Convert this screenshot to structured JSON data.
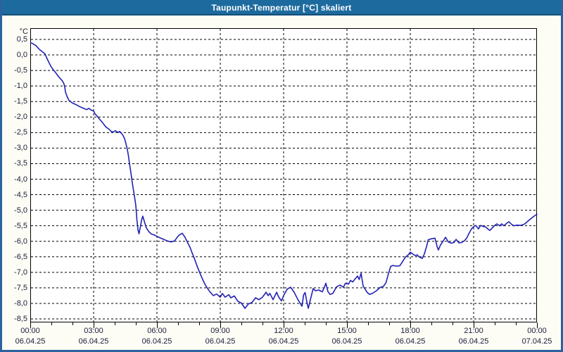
{
  "window": {
    "title": "Taupunkt-Temperatur [°C] skaliert"
  },
  "colors": {
    "titlebar_bg": "#1d6b9e",
    "titlebar_border": "#0f4e78",
    "window_border": "#2a62a0",
    "window_bg": "#fdfdf6",
    "plot_bg": "#ffffff",
    "axis_text": "#1c1c3a",
    "grid": "#000000",
    "line_color": "#2121b4"
  },
  "chart_data": {
    "type": "line",
    "title": "Taupunkt-Temperatur [°C] skaliert",
    "ylabel": "°C",
    "xlabel": "",
    "grid": "dashed",
    "legend": "none",
    "x_range_hours": [
      0,
      24
    ],
    "x_major_step_hours": 3,
    "x_minor_step_hours": 1,
    "ylim": [
      -8.5,
      0.5
    ],
    "y_step": 0.5,
    "y_ticks": [
      {
        "label": "0,5",
        "value": 0.5
      },
      {
        "label": "0,0",
        "value": 0.0
      },
      {
        "label": "-0,5",
        "value": -0.5
      },
      {
        "label": "-1,0",
        "value": -1.0
      },
      {
        "label": "-1,5",
        "value": -1.5
      },
      {
        "label": "-2,0",
        "value": -2.0
      },
      {
        "label": "-2,5",
        "value": -2.5
      },
      {
        "label": "-3,0",
        "value": -3.0
      },
      {
        "label": "-3,5",
        "value": -3.5
      },
      {
        "label": "-4,0",
        "value": -4.0
      },
      {
        "label": "-4,5",
        "value": -4.5
      },
      {
        "label": "-5,0",
        "value": -5.0
      },
      {
        "label": "-5,5",
        "value": -5.5
      },
      {
        "label": "-6,0",
        "value": -6.0
      },
      {
        "label": "-6,5",
        "value": -6.5
      },
      {
        "label": "-7,0",
        "value": -7.0
      },
      {
        "label": "-7,5",
        "value": -7.5
      },
      {
        "label": "-8,0",
        "value": -8.0
      },
      {
        "label": "-8,5",
        "value": -8.5
      }
    ],
    "x_ticks": [
      {
        "hour": 0,
        "time": "00:00",
        "date": "06.04.25"
      },
      {
        "hour": 3,
        "time": "03:00",
        "date": "06.04.25"
      },
      {
        "hour": 6,
        "time": "06:00",
        "date": "06.04.25"
      },
      {
        "hour": 9,
        "time": "09:00",
        "date": "06.04.25"
      },
      {
        "hour": 12,
        "time": "12:00",
        "date": "06.04.25"
      },
      {
        "hour": 15,
        "time": "15:00",
        "date": "06.04.25"
      },
      {
        "hour": 18,
        "time": "18:00",
        "date": "06.04.25"
      },
      {
        "hour": 21,
        "time": "21:00",
        "date": "06.04.25"
      },
      {
        "hour": 24,
        "time": "00:00",
        "date": "07.04.25"
      }
    ],
    "series": [
      {
        "name": "Taupunkt-Temperatur",
        "unit": "°C",
        "points": [
          [
            0,
            0.4
          ],
          [
            0.1,
            0.37
          ],
          [
            0.27,
            0.3
          ],
          [
            0.43,
            0.18
          ],
          [
            0.6,
            0.09
          ],
          [
            0.7,
            0.03
          ],
          [
            0.77,
            -0.08
          ],
          [
            0.87,
            -0.22
          ],
          [
            0.97,
            -0.36
          ],
          [
            1.07,
            -0.46
          ],
          [
            1.17,
            -0.54
          ],
          [
            1.3,
            -0.66
          ],
          [
            1.42,
            -0.76
          ],
          [
            1.5,
            -0.82
          ],
          [
            1.58,
            -0.9
          ],
          [
            1.63,
            -1.02
          ],
          [
            1.67,
            -1.2
          ],
          [
            1.75,
            -1.35
          ],
          [
            1.83,
            -1.46
          ],
          [
            2,
            -1.55
          ],
          [
            2.17,
            -1.6
          ],
          [
            2.33,
            -1.66
          ],
          [
            2.5,
            -1.71
          ],
          [
            2.67,
            -1.76
          ],
          [
            2.77,
            -1.72
          ],
          [
            2.9,
            -1.78
          ],
          [
            3,
            -1.8
          ],
          [
            3.07,
            -1.9
          ],
          [
            3.17,
            -1.97
          ],
          [
            3.27,
            -2.06
          ],
          [
            3.4,
            -2.16
          ],
          [
            3.5,
            -2.25
          ],
          [
            3.6,
            -2.33
          ],
          [
            3.73,
            -2.39
          ],
          [
            3.83,
            -2.46
          ],
          [
            3.93,
            -2.48
          ],
          [
            4.03,
            -2.44
          ],
          [
            4.1,
            -2.47
          ],
          [
            4.17,
            -2.5
          ],
          [
            4.23,
            -2.46
          ],
          [
            4.33,
            -2.53
          ],
          [
            4.4,
            -2.6
          ],
          [
            4.47,
            -2.7
          ],
          [
            4.53,
            -2.85
          ],
          [
            4.6,
            -3.05
          ],
          [
            4.65,
            -3.25
          ],
          [
            4.7,
            -3.5
          ],
          [
            4.75,
            -3.72
          ],
          [
            4.8,
            -3.95
          ],
          [
            4.85,
            -4.2
          ],
          [
            4.9,
            -4.4
          ],
          [
            4.95,
            -4.62
          ],
          [
            5,
            -4.85
          ],
          [
            5.05,
            -5.3
          ],
          [
            5.1,
            -5.62
          ],
          [
            5.15,
            -5.76
          ],
          [
            5.22,
            -5.52
          ],
          [
            5.28,
            -5.3
          ],
          [
            5.33,
            -5.19
          ],
          [
            5.42,
            -5.4
          ],
          [
            5.5,
            -5.57
          ],
          [
            5.63,
            -5.7
          ],
          [
            5.75,
            -5.77
          ],
          [
            5.88,
            -5.8
          ],
          [
            6,
            -5.84
          ],
          [
            6.15,
            -5.89
          ],
          [
            6.33,
            -5.94
          ],
          [
            6.5,
            -5.99
          ],
          [
            6.67,
            -6.02
          ],
          [
            6.83,
            -5.99
          ],
          [
            6.93,
            -5.9
          ],
          [
            7.05,
            -5.8
          ],
          [
            7.2,
            -5.74
          ],
          [
            7.33,
            -5.87
          ],
          [
            7.43,
            -6.01
          ],
          [
            7.57,
            -6.2
          ],
          [
            7.67,
            -6.38
          ],
          [
            7.77,
            -6.55
          ],
          [
            7.93,
            -6.85
          ],
          [
            8.07,
            -7.08
          ],
          [
            8.2,
            -7.28
          ],
          [
            8.33,
            -7.45
          ],
          [
            8.5,
            -7.62
          ],
          [
            8.67,
            -7.75
          ],
          [
            8.83,
            -7.7
          ],
          [
            9,
            -7.8
          ],
          [
            9.1,
            -7.68
          ],
          [
            9.23,
            -7.8
          ],
          [
            9.4,
            -7.72
          ],
          [
            9.5,
            -7.82
          ],
          [
            9.67,
            -7.76
          ],
          [
            9.83,
            -7.93
          ],
          [
            10,
            -7.99
          ],
          [
            10.17,
            -8.16
          ],
          [
            10.33,
            -8.02
          ],
          [
            10.5,
            -7.97
          ],
          [
            10.67,
            -7.82
          ],
          [
            10.83,
            -7.88
          ],
          [
            11,
            -7.8
          ],
          [
            11.17,
            -7.64
          ],
          [
            11.27,
            -7.75
          ],
          [
            11.35,
            -7.68
          ],
          [
            11.5,
            -7.88
          ],
          [
            11.67,
            -7.64
          ],
          [
            11.77,
            -7.8
          ],
          [
            11.9,
            -7.92
          ],
          [
            12,
            -7.75
          ],
          [
            12.17,
            -7.54
          ],
          [
            12.33,
            -7.48
          ],
          [
            12.5,
            -7.64
          ],
          [
            12.67,
            -7.87
          ],
          [
            12.78,
            -7.99
          ],
          [
            12.87,
            -8.09
          ],
          [
            12.95,
            -7.72
          ],
          [
            13.02,
            -7.65
          ],
          [
            13.1,
            -7.95
          ],
          [
            13.17,
            -8.16
          ],
          [
            13.28,
            -7.85
          ],
          [
            13.4,
            -7.52
          ],
          [
            13.5,
            -7.59
          ],
          [
            13.67,
            -7.57
          ],
          [
            13.83,
            -7.63
          ],
          [
            13.93,
            -7.48
          ],
          [
            14,
            -7.35
          ],
          [
            14.1,
            -7.62
          ],
          [
            14.2,
            -7.71
          ],
          [
            14.33,
            -7.68
          ],
          [
            14.5,
            -7.47
          ],
          [
            14.67,
            -7.41
          ],
          [
            14.83,
            -7.48
          ],
          [
            14.93,
            -7.35
          ],
          [
            15.07,
            -7.38
          ],
          [
            15.17,
            -7.26
          ],
          [
            15.27,
            -7.31
          ],
          [
            15.4,
            -7.2
          ],
          [
            15.5,
            -7.12
          ],
          [
            15.58,
            -7.23
          ],
          [
            15.67,
            -7.03
          ],
          [
            15.77,
            -7.45
          ],
          [
            15.85,
            -7.53
          ],
          [
            15.95,
            -7.64
          ],
          [
            16.07,
            -7.71
          ],
          [
            16.23,
            -7.67
          ],
          [
            16.4,
            -7.59
          ],
          [
            16.57,
            -7.49
          ],
          [
            16.73,
            -7.45
          ],
          [
            16.85,
            -7.33
          ],
          [
            16.95,
            -7.08
          ],
          [
            17.07,
            -6.81
          ],
          [
            17.17,
            -6.78
          ],
          [
            17.33,
            -6.8
          ],
          [
            17.5,
            -6.79
          ],
          [
            17.6,
            -6.69
          ],
          [
            17.77,
            -6.51
          ],
          [
            17.9,
            -6.44
          ],
          [
            18,
            -6.35
          ],
          [
            18.1,
            -6.4
          ],
          [
            18.23,
            -6.46
          ],
          [
            18.33,
            -6.44
          ],
          [
            18.43,
            -6.51
          ],
          [
            18.57,
            -6.55
          ],
          [
            18.67,
            -6.4
          ],
          [
            18.77,
            -6.17
          ],
          [
            18.85,
            -5.95
          ],
          [
            19,
            -5.92
          ],
          [
            19.17,
            -5.9
          ],
          [
            19.27,
            -6.17
          ],
          [
            19.33,
            -6.28
          ],
          [
            19.43,
            -6.12
          ],
          [
            19.57,
            -5.98
          ],
          [
            19.67,
            -5.87
          ],
          [
            19.8,
            -6.02
          ],
          [
            19.93,
            -6.06
          ],
          [
            20.07,
            -6.04
          ],
          [
            20.17,
            -5.94
          ],
          [
            20.3,
            -6.05
          ],
          [
            20.43,
            -6.04
          ],
          [
            20.57,
            -5.98
          ],
          [
            20.67,
            -5.9
          ],
          [
            20.77,
            -5.76
          ],
          [
            20.9,
            -5.6
          ],
          [
            21,
            -5.53
          ],
          [
            21.1,
            -5.49
          ],
          [
            21.23,
            -5.6
          ],
          [
            21.33,
            -5.49
          ],
          [
            21.43,
            -5.52
          ],
          [
            21.57,
            -5.54
          ],
          [
            21.67,
            -5.6
          ],
          [
            21.77,
            -5.65
          ],
          [
            21.9,
            -5.56
          ],
          [
            22,
            -5.49
          ],
          [
            22.1,
            -5.44
          ],
          [
            22.23,
            -5.5
          ],
          [
            22.33,
            -5.44
          ],
          [
            22.43,
            -5.5
          ],
          [
            22.57,
            -5.42
          ],
          [
            22.67,
            -5.37
          ],
          [
            22.77,
            -5.44
          ],
          [
            22.9,
            -5.5
          ],
          [
            23.05,
            -5.48
          ],
          [
            23.23,
            -5.49
          ],
          [
            23.43,
            -5.44
          ],
          [
            23.57,
            -5.35
          ],
          [
            23.73,
            -5.26
          ],
          [
            23.85,
            -5.2
          ],
          [
            24,
            -5.13
          ]
        ]
      }
    ]
  }
}
